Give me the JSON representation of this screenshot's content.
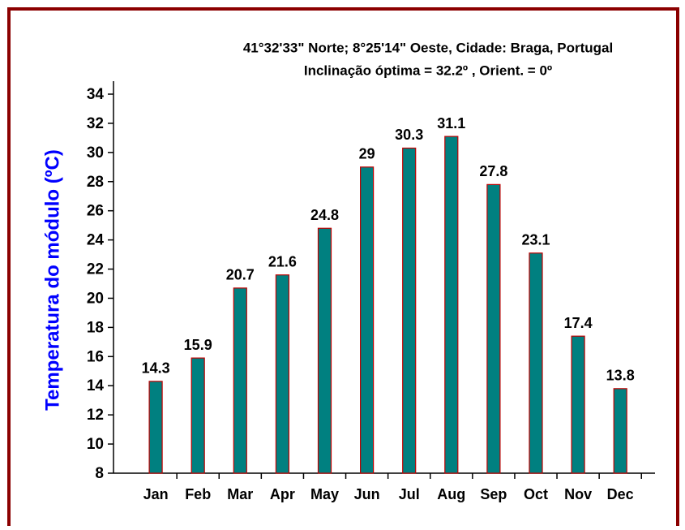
{
  "chart_data": {
    "type": "bar",
    "title": "41°32'33\" Norte; 8°25'14\" Oeste, Cidade: Braga, Portugal",
    "subtitle": "Inclinação óptima = 32.2º , Orient. = 0º",
    "y_label": "Temperatura do módulo (ºC)",
    "categories": [
      "Jan",
      "Feb",
      "Mar",
      "Apr",
      "May",
      "Jun",
      "Jul",
      "Aug",
      "Sep",
      "Oct",
      "Nov",
      "Dec"
    ],
    "values": [
      14.3,
      15.9,
      20.7,
      21.6,
      24.8,
      29,
      30.3,
      31.1,
      27.8,
      23.1,
      17.4,
      13.8
    ],
    "color": "#008080",
    "edge_color": "#c00000",
    "ylim": [
      8,
      34
    ],
    "yticks": [
      8,
      10,
      12,
      14,
      16,
      18,
      20,
      22,
      24,
      26,
      28,
      30,
      32,
      34
    ],
    "grid": false
  }
}
